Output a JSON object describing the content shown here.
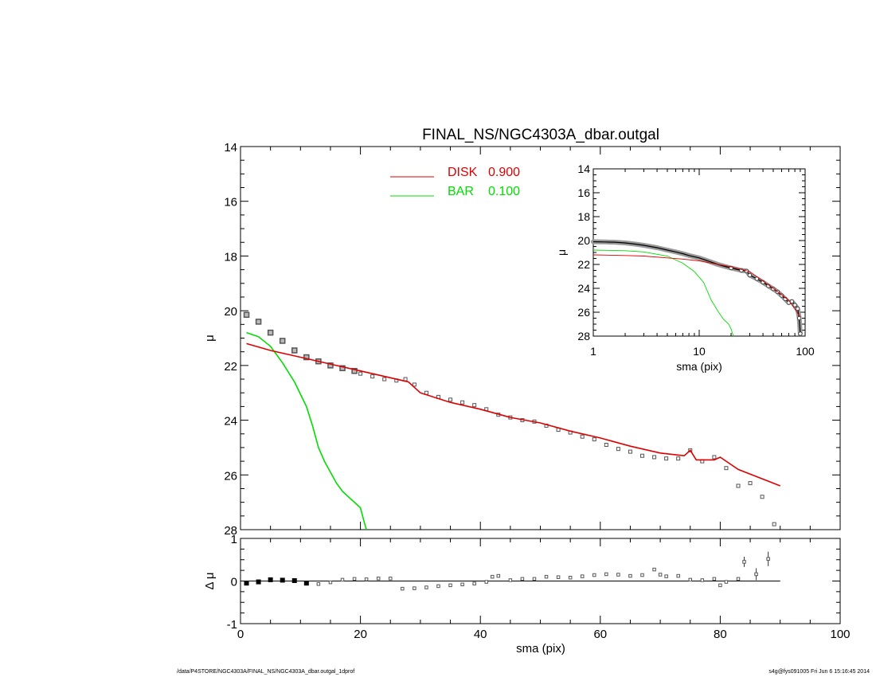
{
  "title": "FINAL_NS/NGC4303A_dbar.outgal",
  "footer_left": "/data/P4STORE/NGC4303A/FINAL_NS/NGC4303A_dbar.outgal_1dprof",
  "footer_right": "s4g@fys091005  Fri Jun  6 15:16:45 2014",
  "colors": {
    "disk": "#e00000",
    "bar": "#00dd00",
    "data": "#555555"
  },
  "legend": [
    {
      "name": "DISK",
      "value": "0.900",
      "color": "#e00000"
    },
    {
      "name": "BAR",
      "value": "0.100",
      "color": "#00dd00"
    }
  ],
  "chart_data": [
    {
      "panel": "main",
      "type": "scatter",
      "xlabel": "sma (pix)",
      "ylabel": "μ",
      "xlim": [
        0,
        100
      ],
      "ylim": [
        28,
        14
      ],
      "yticks": [
        "14",
        "16",
        "18",
        "20",
        "22",
        "24",
        "26",
        "28"
      ],
      "series": [
        {
          "name": "DISK",
          "x": [
            1,
            5,
            10,
            15,
            20,
            25,
            28,
            30,
            35,
            40,
            45,
            50,
            55,
            60,
            65,
            70,
            74,
            75,
            76,
            79,
            80,
            83,
            90
          ],
          "y": [
            21.2,
            21.45,
            21.7,
            21.95,
            22.2,
            22.45,
            22.6,
            23.0,
            23.35,
            23.6,
            23.9,
            24.1,
            24.4,
            24.65,
            24.95,
            25.2,
            25.3,
            25.1,
            25.45,
            25.45,
            25.35,
            25.8,
            26.4
          ]
        },
        {
          "name": "BAR",
          "x": [
            1,
            3,
            5,
            7,
            9,
            11,
            12,
            13,
            14,
            15,
            16,
            17,
            18,
            19,
            20,
            20.6,
            21
          ],
          "y": [
            20.8,
            20.95,
            21.3,
            21.9,
            22.6,
            23.5,
            24.2,
            25.0,
            25.5,
            25.9,
            26.3,
            26.6,
            26.8,
            27.0,
            27.2,
            27.7,
            28.0
          ]
        },
        {
          "name": "data",
          "x": [
            1,
            3,
            5,
            7,
            9,
            11,
            13,
            15,
            17,
            19,
            20,
            22,
            24,
            26,
            27.5,
            29,
            31,
            33,
            35,
            37,
            39,
            41,
            43,
            45,
            47,
            49,
            51,
            53,
            55,
            57,
            59,
            61,
            63,
            65,
            67,
            69,
            71,
            73,
            75,
            77,
            79,
            81,
            83,
            85,
            87,
            89
          ],
          "y": [
            20.15,
            20.4,
            20.8,
            21.1,
            21.45,
            21.7,
            21.85,
            22.0,
            22.1,
            22.2,
            22.3,
            22.4,
            22.5,
            22.55,
            22.5,
            22.7,
            23.0,
            23.15,
            23.25,
            23.35,
            23.45,
            23.6,
            23.8,
            23.9,
            24.0,
            24.05,
            24.2,
            24.35,
            24.45,
            24.6,
            24.7,
            24.9,
            25.05,
            25.15,
            25.3,
            25.35,
            25.4,
            25.4,
            25.1,
            25.5,
            25.35,
            25.75,
            26.4,
            26.3,
            26.8,
            27.8
          ]
        }
      ]
    },
    {
      "panel": "inset",
      "type": "scatter",
      "xscale": "log",
      "xlabel": "sma (pix)",
      "ylabel": "μ",
      "xlim": [
        1,
        100
      ],
      "ylim": [
        28,
        14
      ],
      "xticks": [
        "1",
        "10",
        "100"
      ],
      "yticks": [
        "14",
        "16",
        "18",
        "20",
        "22",
        "24",
        "26",
        "28"
      ],
      "series": [
        {
          "name": "DISK",
          "x": [
            1,
            2,
            3,
            5,
            7,
            10,
            20,
            30,
            50,
            70,
            90
          ],
          "y": [
            21.2,
            21.25,
            21.3,
            21.45,
            21.55,
            21.7,
            22.2,
            22.6,
            24.0,
            25.0,
            26.4
          ]
        },
        {
          "name": "BAR",
          "x": [
            1,
            2,
            3,
            5,
            7,
            9,
            11,
            13,
            15,
            17,
            19,
            20,
            21
          ],
          "y": [
            20.8,
            20.85,
            20.95,
            21.3,
            21.9,
            22.6,
            23.5,
            25.0,
            25.9,
            26.6,
            27.0,
            27.4,
            28.0
          ]
        },
        {
          "name": "data",
          "x": [
            1,
            1.3,
            1.6,
            2,
            2.5,
            3,
            4,
            5,
            6,
            7,
            8,
            10,
            12,
            15,
            18,
            20,
            25,
            28,
            30,
            35,
            40,
            45,
            50,
            55,
            60,
            65,
            70,
            75,
            80,
            85,
            88,
            90
          ],
          "y": [
            20.1,
            20.12,
            20.14,
            20.2,
            20.3,
            20.4,
            20.6,
            20.8,
            20.95,
            21.1,
            21.25,
            21.45,
            21.7,
            22.0,
            22.2,
            22.3,
            22.5,
            22.55,
            22.9,
            23.2,
            23.5,
            23.8,
            24.05,
            24.3,
            24.6,
            24.9,
            25.2,
            25.1,
            25.4,
            25.7,
            26.5,
            27.8
          ]
        }
      ]
    },
    {
      "panel": "residual",
      "type": "scatter",
      "xlabel": "sma (pix)",
      "ylabel": "Δ μ",
      "xlim": [
        0,
        100
      ],
      "ylim": [
        -1,
        1
      ],
      "xticks": [
        "0",
        "20",
        "40",
        "60",
        "80",
        "100"
      ],
      "yticks": [
        "-1",
        "0",
        "1"
      ],
      "reference_line": {
        "y": 0,
        "x_start": 1,
        "x_end": 90
      },
      "series": [
        {
          "name": "residual",
          "x": [
            1,
            3,
            5,
            7,
            9,
            11,
            13,
            15,
            17,
            19,
            21,
            23,
            25,
            27,
            29,
            31,
            33,
            35,
            37,
            39,
            41,
            42,
            43,
            45,
            47,
            49,
            51,
            53,
            55,
            57,
            59,
            61,
            63,
            65,
            67,
            69,
            70,
            71,
            73,
            75,
            77,
            79,
            80,
            81,
            83,
            84,
            86,
            88
          ],
          "y": [
            -0.05,
            -0.02,
            0.03,
            0.02,
            0.01,
            -0.05,
            -0.07,
            -0.03,
            0.03,
            0.05,
            0.04,
            0.06,
            0.06,
            -0.18,
            -0.17,
            -0.15,
            -0.12,
            -0.1,
            -0.08,
            -0.06,
            -0.02,
            0.1,
            0.12,
            0.02,
            0.05,
            0.05,
            0.1,
            0.09,
            0.08,
            0.11,
            0.14,
            0.16,
            0.15,
            0.12,
            0.14,
            0.27,
            0.15,
            0.11,
            0.12,
            0.03,
            0.02,
            0.05,
            -0.1,
            -0.02,
            0.05,
            0.45,
            0.16,
            0.52
          ],
          "errors": [
            0,
            0,
            0,
            0,
            0,
            0,
            0,
            0,
            0,
            0,
            0,
            0,
            0,
            0,
            0,
            0,
            0,
            0,
            0,
            0,
            0,
            0,
            0,
            0,
            0,
            0,
            0,
            0,
            0,
            0,
            0,
            0,
            0,
            0,
            0,
            0,
            0,
            0,
            0,
            0,
            0,
            0,
            0,
            0,
            0,
            0.12,
            0.14,
            0.17
          ]
        }
      ]
    }
  ]
}
